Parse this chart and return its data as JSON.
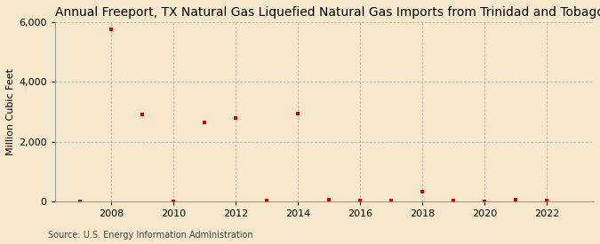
{
  "title": "Annual Freeport, TX Natural Gas Liquefied Natural Gas Imports from Trinidad and Tobago",
  "ylabel": "Million Cubic Feet",
  "source": "Source: U.S. Energy Information Administration",
  "background_color": "#f5e8cc",
  "plot_background_color": "#f5e8cc",
  "marker_color": "#cc0000",
  "marker": "s",
  "markersize": 3.5,
  "years": [
    2007,
    2008,
    2009,
    2010,
    2011,
    2012,
    2013,
    2014,
    2015,
    2016,
    2017,
    2018,
    2019,
    2020,
    2021,
    2022
  ],
  "values": [
    0,
    5750,
    2900,
    0,
    2650,
    2800,
    40,
    2950,
    50,
    30,
    20,
    330,
    30,
    10,
    50,
    20
  ],
  "ylim": [
    0,
    6000
  ],
  "yticks": [
    0,
    2000,
    4000,
    6000
  ],
  "xticks": [
    2008,
    2010,
    2012,
    2014,
    2016,
    2018,
    2020,
    2022
  ],
  "xlim": [
    2006.2,
    2023.5
  ],
  "grid_color": "#aaaaaa",
  "title_fontsize": 10,
  "axis_fontsize": 8,
  "tick_fontsize": 8,
  "source_fontsize": 7
}
